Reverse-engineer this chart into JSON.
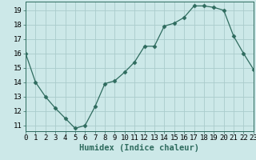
{
  "x": [
    0,
    1,
    2,
    3,
    4,
    5,
    6,
    7,
    8,
    9,
    10,
    11,
    12,
    13,
    14,
    15,
    16,
    17,
    18,
    19,
    20,
    21,
    22,
    23
  ],
  "y": [
    16,
    14,
    13,
    12.2,
    11.5,
    10.8,
    11.0,
    12.3,
    13.9,
    14.1,
    14.7,
    15.4,
    16.5,
    16.5,
    17.9,
    18.1,
    18.5,
    19.3,
    19.3,
    19.2,
    19.0,
    17.2,
    16.0,
    14.9
  ],
  "xlabel": "Humidex (Indice chaleur)",
  "xlim": [
    0,
    23
  ],
  "ylim": [
    10.6,
    19.6
  ],
  "yticks": [
    11,
    12,
    13,
    14,
    15,
    16,
    17,
    18,
    19
  ],
  "xticks": [
    0,
    1,
    2,
    3,
    4,
    5,
    6,
    7,
    8,
    9,
    10,
    11,
    12,
    13,
    14,
    15,
    16,
    17,
    18,
    19,
    20,
    21,
    22,
    23
  ],
  "line_color": "#2e6b5e",
  "marker": "D",
  "marker_size": 2.5,
  "bg_color": "#cce8e8",
  "grid_color": "#aacccc",
  "xlabel_fontsize": 7.5,
  "tick_fontsize": 6.5
}
